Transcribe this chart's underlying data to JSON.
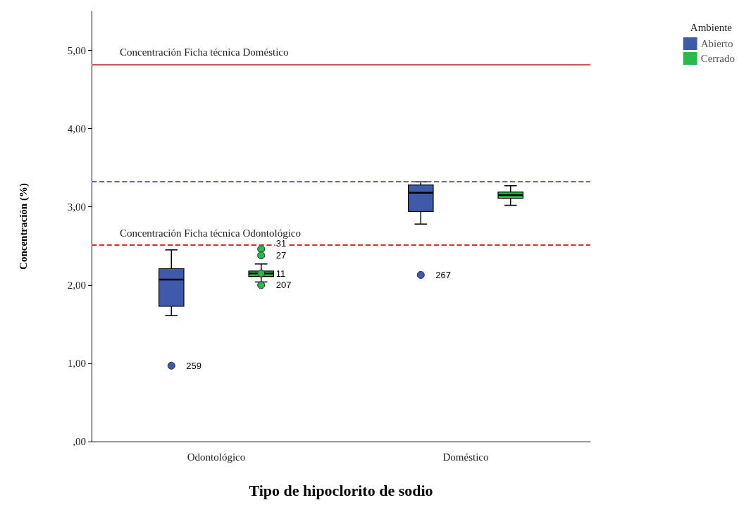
{
  "chart_data": {
    "type": "box",
    "xlabel": "Tipo de hipoclorito de sodio",
    "ylabel": "Concentración (%)",
    "legend_title": "Ambiente",
    "legend": "top right",
    "grid": false,
    "categories": [
      "Odontológico",
      "Doméstico"
    ],
    "ylim": [
      0,
      5.5
    ],
    "yticks": [
      {
        "value": 0,
        "label": ",00"
      },
      {
        "value": 1,
        "label": "1,00"
      },
      {
        "value": 2,
        "label": "2,00"
      },
      {
        "value": 3,
        "label": "3,00"
      },
      {
        "value": 4,
        "label": "4,00"
      },
      {
        "value": 5,
        "label": "5,00"
      }
    ],
    "series": [
      {
        "name": "Abierto",
        "color": "#3f5aa8",
        "boxes": [
          {
            "low": 1.61,
            "q1": 1.73,
            "median": 2.07,
            "q3": 2.21,
            "high": 2.45,
            "outliers": [
              0.97
            ]
          },
          {
            "low": 2.78,
            "q1": 2.94,
            "median": 3.18,
            "q3": 3.28,
            "high": 3.32,
            "outliers": [
              2.13
            ]
          }
        ]
      },
      {
        "name": "Cerrado",
        "color": "#2db84a",
        "boxes": [
          {
            "low": 2.04,
            "q1": 2.11,
            "median": 2.15,
            "q3": 2.18,
            "high": 2.27,
            "outliers": [
              2.46,
              2.38,
              2.15,
              2.0
            ]
          },
          {
            "low": 3.02,
            "q1": 3.11,
            "median": 3.15,
            "q3": 3.19,
            "high": 3.27
          }
        ]
      }
    ],
    "ref_lines": [
      {
        "axis": "y",
        "value": 4.82,
        "label": "Concentración Ficha técnica Doméstico",
        "color": "#cc5555",
        "line_style": "solid"
      },
      {
        "axis": "y",
        "value": 3.32,
        "label": null,
        "color": "#6666bb",
        "line_style": "dashed"
      },
      {
        "axis": "y",
        "value": 2.51,
        "label": "Concentración Ficha técnica Odontológico",
        "color": "#cc3333",
        "line_style": "dashed"
      }
    ],
    "annotations": [
      "259",
      "267",
      "31",
      "27",
      "11",
      "207"
    ]
  }
}
